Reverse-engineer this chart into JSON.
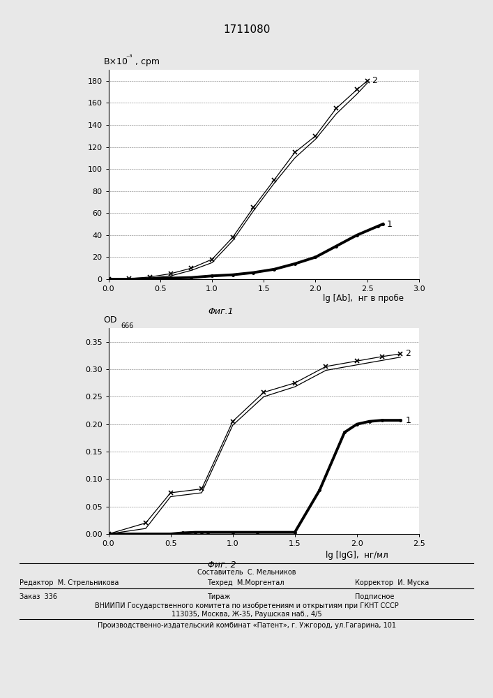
{
  "title": "1711080",
  "fig1": {
    "xlabel": "lg [Ab],  нг в пробе",
    "caption": "Φиг.1",
    "xlim": [
      0.0,
      3.0
    ],
    "ylim": [
      0,
      190
    ],
    "yticks": [
      0,
      20,
      40,
      60,
      80,
      100,
      120,
      140,
      160,
      180
    ],
    "xticks": [
      0.0,
      0.5,
      1.0,
      1.5,
      2.0,
      2.5,
      3.0
    ],
    "curve1_x": [
      0.0,
      0.2,
      0.4,
      0.6,
      0.8,
      1.0,
      1.2,
      1.4,
      1.6,
      1.8,
      2.0,
      2.2,
      2.4,
      2.6,
      2.65
    ],
    "curve1_y": [
      0,
      0,
      0.5,
      1,
      1.5,
      3,
      4,
      6,
      9,
      14,
      20,
      30,
      40,
      48,
      50
    ],
    "curve2a_x": [
      0.0,
      0.2,
      0.4,
      0.6,
      0.8,
      1.0,
      1.2,
      1.4,
      1.6,
      1.8,
      2.0,
      2.2,
      2.4,
      2.5
    ],
    "curve2a_y": [
      0,
      0.5,
      2,
      5,
      10,
      18,
      38,
      65,
      90,
      115,
      130,
      155,
      172,
      180
    ],
    "curve2b_x": [
      0.0,
      0.2,
      0.4,
      0.6,
      0.8,
      1.0,
      1.2,
      1.4,
      1.6,
      1.8,
      2.0,
      2.2,
      2.4,
      2.5
    ],
    "curve2b_y": [
      0,
      0,
      1,
      3,
      8,
      15,
      35,
      62,
      87,
      110,
      127,
      150,
      168,
      178
    ],
    "label1": "1",
    "label2": "2",
    "ylabel_main": "B×10",
    "ylabel_exp": "-3",
    "ylabel_unit": ", cpm"
  },
  "fig2": {
    "xlabel": "lg [IgG],  нг/мл",
    "caption": "Φиг. 2",
    "xlim": [
      0.0,
      2.5
    ],
    "ylim": [
      0.0,
      0.375
    ],
    "yticks": [
      0.0,
      0.05,
      0.1,
      0.15,
      0.2,
      0.25,
      0.3,
      0.35
    ],
    "xticks": [
      0.0,
      0.5,
      1.0,
      1.5,
      2.0,
      2.5
    ],
    "curve1_x": [
      0.0,
      0.3,
      0.5,
      0.6,
      0.7,
      0.75,
      0.8,
      1.0,
      1.2,
      1.5,
      1.7,
      1.9,
      2.0,
      2.1,
      2.2,
      2.35
    ],
    "curve1_y": [
      0.0,
      0.0,
      0.0,
      0.002,
      0.003,
      0.003,
      0.003,
      0.003,
      0.003,
      0.003,
      0.08,
      0.185,
      0.2,
      0.205,
      0.207,
      0.207
    ],
    "curve2a_x": [
      0.0,
      0.3,
      0.5,
      0.75,
      1.0,
      1.25,
      1.5,
      1.75,
      2.0,
      2.2,
      2.35
    ],
    "curve2a_y": [
      0.0,
      0.02,
      0.075,
      0.082,
      0.205,
      0.258,
      0.275,
      0.305,
      0.315,
      0.323,
      0.328
    ],
    "curve2b_x": [
      0.0,
      0.3,
      0.5,
      0.75,
      1.0,
      1.25,
      1.5,
      1.75,
      2.0,
      2.2,
      2.35
    ],
    "curve2b_y": [
      0.0,
      0.01,
      0.068,
      0.075,
      0.198,
      0.25,
      0.268,
      0.298,
      0.308,
      0.316,
      0.322
    ],
    "label1": "1",
    "label2": "2",
    "ylabel_main": "OD",
    "ylabel_sub": "666"
  },
  "footer": {
    "line1_center": "Составитель  С. Мельников",
    "line2_left": "Редактор  М. Стрельникова",
    "line2_center": "Техред  М.Моргентал",
    "line2_right": "Корректор  И. Муска",
    "line3_left": "Заказ  336",
    "line3_center": "Тираж",
    "line3_right": "Подписное",
    "line4": "ВНИИПИ Государственного комитета по изобретениям и открытиям при ГКНТ СССР",
    "line5": "113035, Москва, Ж-35, Раушская наб., 4/5",
    "line6": "Производственно-издательский комбинат «Патент», г. Ужгород, ул.Гагарина, 101"
  },
  "bg_color": "#e8e8e8",
  "chart_bg": "#ffffff"
}
